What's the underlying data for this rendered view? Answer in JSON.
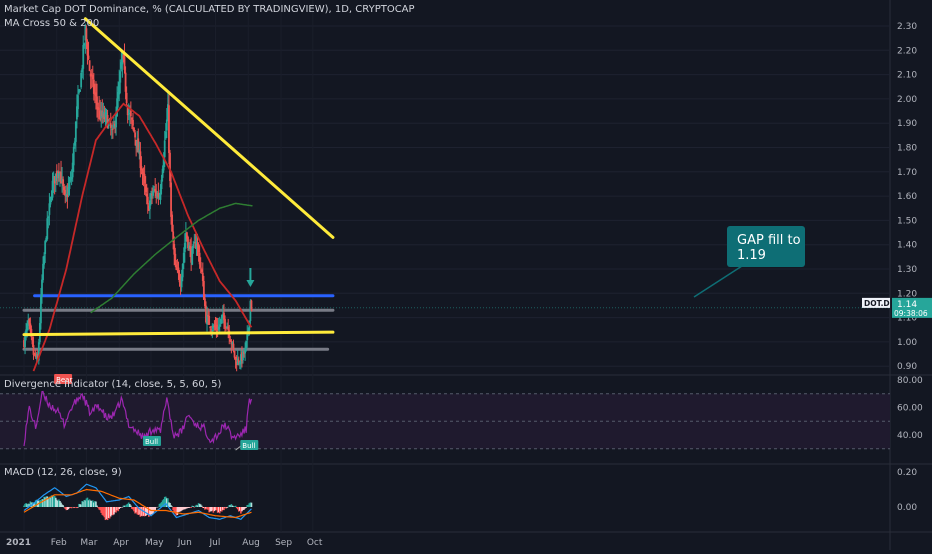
{
  "header": {
    "title": "Market Cap DOT Dominance, % (CALCULATED BY TRADINGVIEW), 1D, CRYPTOCAP",
    "indicator_ma": "MA Cross 50 & 200",
    "indicator_div": "Divergence Indicator (14, close, 5, 5, 60, 5)",
    "indicator_macd": "MACD (12, 26, close, 9)"
  },
  "colors": {
    "background": "#131722",
    "up": "#26a69a",
    "down": "#ef5350",
    "ma50": "#c62828",
    "ma200": "#2e7d32",
    "trendline": "#ffeb3b",
    "blue_line": "#2962ff",
    "grey_line": "#787b86",
    "rsi": "#9c27b0",
    "macd": "#2196f3",
    "signal": "#ff6d00",
    "callout": "#0e6e75"
  },
  "price_axis": {
    "ticks": [
      "2.30",
      "2.20",
      "2.10",
      "2.00",
      "1.90",
      "1.80",
      "1.70",
      "1.60",
      "1.50",
      "1.40",
      "1.30",
      "1.20",
      "1.10",
      "1.00",
      "0.90"
    ],
    "current_symbol": "DOT.D",
    "current_value": "1.14",
    "countdown": "09:38:06"
  },
  "div_axis": {
    "ticks": [
      "80.00",
      "60.00",
      "40.00"
    ]
  },
  "macd_axis": {
    "ticks": [
      "0.20",
      "0.00"
    ]
  },
  "time_axis": {
    "ticks": [
      "2021",
      "Feb",
      "Mar",
      "Apr",
      "May",
      "Jun",
      "Jul",
      "Aug",
      "Sep",
      "Oct"
    ]
  },
  "annotations": {
    "callout": "GAP fill to\n1.19",
    "bear": "Bear",
    "bull1": "Bull",
    "bull2": "Bull"
  },
  "chart_data": {
    "type": "candlestick",
    "title": "Market Cap DOT Dominance, % (CALCULATED BY TRADINGVIEW), 1D, CRYPTOCAP",
    "ylim": [
      0.86,
      2.34
    ],
    "price_anchors": [
      {
        "t": "2021-01-01",
        "v": 1.0
      },
      {
        "t": "2021-01-05",
        "v": 1.08
      },
      {
        "t": "2021-01-10",
        "v": 0.95
      },
      {
        "t": "2021-01-14",
        "v": 0.92
      },
      {
        "t": "2021-01-18",
        "v": 1.25
      },
      {
        "t": "2021-01-22",
        "v": 1.45
      },
      {
        "t": "2021-01-28",
        "v": 1.65
      },
      {
        "t": "2021-02-03",
        "v": 1.72
      },
      {
        "t": "2021-02-09",
        "v": 1.58
      },
      {
        "t": "2021-02-15",
        "v": 1.68
      },
      {
        "t": "2021-02-20",
        "v": 1.95
      },
      {
        "t": "2021-02-24",
        "v": 2.1
      },
      {
        "t": "2021-02-28",
        "v": 2.28
      },
      {
        "t": "2021-03-04",
        "v": 2.12
      },
      {
        "t": "2021-03-08",
        "v": 2.03
      },
      {
        "t": "2021-03-14",
        "v": 1.93
      },
      {
        "t": "2021-03-20",
        "v": 1.92
      },
      {
        "t": "2021-03-26",
        "v": 1.85
      },
      {
        "t": "2021-04-01",
        "v": 2.05
      },
      {
        "t": "2021-04-04",
        "v": 2.18
      },
      {
        "t": "2021-04-09",
        "v": 1.96
      },
      {
        "t": "2021-04-16",
        "v": 1.85
      },
      {
        "t": "2021-04-22",
        "v": 1.72
      },
      {
        "t": "2021-04-28",
        "v": 1.55
      },
      {
        "t": "2021-05-03",
        "v": 1.62
      },
      {
        "t": "2021-05-09",
        "v": 1.6
      },
      {
        "t": "2021-05-13",
        "v": 1.78
      },
      {
        "t": "2021-05-17",
        "v": 1.95
      },
      {
        "t": "2021-05-20",
        "v": 1.5
      },
      {
        "t": "2021-05-24",
        "v": 1.3
      },
      {
        "t": "2021-05-29",
        "v": 1.25
      },
      {
        "t": "2021-06-03",
        "v": 1.45
      },
      {
        "t": "2021-06-08",
        "v": 1.35
      },
      {
        "t": "2021-06-13",
        "v": 1.42
      },
      {
        "t": "2021-06-18",
        "v": 1.28
      },
      {
        "t": "2021-06-22",
        "v": 1.1
      },
      {
        "t": "2021-06-28",
        "v": 1.06
      },
      {
        "t": "2021-07-04",
        "v": 1.06
      },
      {
        "t": "2021-07-07",
        "v": 1.1
      },
      {
        "t": "2021-07-12",
        "v": 1.07
      },
      {
        "t": "2021-07-16",
        "v": 1.0
      },
      {
        "t": "2021-07-20",
        "v": 0.92
      },
      {
        "t": "2021-07-25",
        "v": 0.93
      },
      {
        "t": "2021-07-29",
        "v": 0.96
      },
      {
        "t": "2021-08-01",
        "v": 1.05
      },
      {
        "t": "2021-08-03",
        "v": 1.17
      },
      {
        "t": "2021-08-04",
        "v": 1.14
      }
    ],
    "ma50": [
      {
        "t": "2021-01-10",
        "v": 0.88
      },
      {
        "t": "2021-01-25",
        "v": 1.05
      },
      {
        "t": "2021-02-10",
        "v": 1.3
      },
      {
        "t": "2021-02-25",
        "v": 1.6
      },
      {
        "t": "2021-03-10",
        "v": 1.83
      },
      {
        "t": "2021-03-25",
        "v": 1.92
      },
      {
        "t": "2021-04-05",
        "v": 1.98
      },
      {
        "t": "2021-04-20",
        "v": 1.93
      },
      {
        "t": "2021-05-05",
        "v": 1.82
      },
      {
        "t": "2021-05-20",
        "v": 1.7
      },
      {
        "t": "2021-06-05",
        "v": 1.52
      },
      {
        "t": "2021-06-20",
        "v": 1.38
      },
      {
        "t": "2021-07-05",
        "v": 1.25
      },
      {
        "t": "2021-07-20",
        "v": 1.17
      },
      {
        "t": "2021-08-01",
        "v": 1.08
      },
      {
        "t": "2021-08-04",
        "v": 1.06
      }
    ],
    "ma200": [
      {
        "t": "2021-03-05",
        "v": 1.12
      },
      {
        "t": "2021-03-25",
        "v": 1.18
      },
      {
        "t": "2021-04-15",
        "v": 1.28
      },
      {
        "t": "2021-05-05",
        "v": 1.36
      },
      {
        "t": "2021-05-25",
        "v": 1.43
      },
      {
        "t": "2021-06-15",
        "v": 1.5
      },
      {
        "t": "2021-07-05",
        "v": 1.55
      },
      {
        "t": "2021-07-20",
        "v": 1.57
      },
      {
        "t": "2021-08-05",
        "v": 1.56
      }
    ],
    "trendlines": [
      {
        "kind": "descending resistance",
        "from": {
          "t": "2021-02-28",
          "v": 2.33
        },
        "to": {
          "t": "2021-10-20",
          "v": 1.43
        }
      },
      {
        "kind": "support",
        "from": {
          "t": "2021-01-01",
          "v": 1.03
        },
        "to": {
          "t": "2021-10-20",
          "v": 1.04
        }
      },
      {
        "kind": "gap level",
        "from": {
          "t": "2021-01-11",
          "v": 1.19
        },
        "to": {
          "t": "2021-10-20",
          "v": 1.19
        }
      },
      {
        "kind": "level",
        "from": {
          "t": "2021-01-01",
          "v": 1.13
        },
        "to": {
          "t": "2021-10-20",
          "v": 1.13
        }
      },
      {
        "kind": "level",
        "from": {
          "t": "2021-01-01",
          "v": 0.97
        },
        "to": {
          "t": "2021-10-15",
          "v": 0.97
        }
      }
    ],
    "div_ylim": [
      25,
      85
    ],
    "div_bands": [
      70,
      50,
      30
    ],
    "div_anchors": [
      {
        "t": "2021-01-01",
        "v": 35
      },
      {
        "t": "2021-01-06",
        "v": 60
      },
      {
        "t": "2021-01-12",
        "v": 45
      },
      {
        "t": "2021-01-18",
        "v": 70
      },
      {
        "t": "2021-01-25",
        "v": 62
      },
      {
        "t": "2021-02-01",
        "v": 58
      },
      {
        "t": "2021-02-08",
        "v": 48
      },
      {
        "t": "2021-02-15",
        "v": 60
      },
      {
        "t": "2021-02-25",
        "v": 70
      },
      {
        "t": "2021-03-05",
        "v": 55
      },
      {
        "t": "2021-03-12",
        "v": 62
      },
      {
        "t": "2021-03-20",
        "v": 52
      },
      {
        "t": "2021-03-28",
        "v": 55
      },
      {
        "t": "2021-04-03",
        "v": 66
      },
      {
        "t": "2021-04-10",
        "v": 48
      },
      {
        "t": "2021-04-18",
        "v": 42
      },
      {
        "t": "2021-04-25",
        "v": 38
      },
      {
        "t": "2021-05-03",
        "v": 45
      },
      {
        "t": "2021-05-10",
        "v": 42
      },
      {
        "t": "2021-05-16",
        "v": 68
      },
      {
        "t": "2021-05-22",
        "v": 40
      },
      {
        "t": "2021-05-30",
        "v": 42
      },
      {
        "t": "2021-06-05",
        "v": 55
      },
      {
        "t": "2021-06-12",
        "v": 48
      },
      {
        "t": "2021-06-20",
        "v": 45
      },
      {
        "t": "2021-06-27",
        "v": 36
      },
      {
        "t": "2021-07-05",
        "v": 42
      },
      {
        "t": "2021-07-10",
        "v": 48
      },
      {
        "t": "2021-07-17",
        "v": 38
      },
      {
        "t": "2021-07-24",
        "v": 40
      },
      {
        "t": "2021-07-30",
        "v": 44
      },
      {
        "t": "2021-08-02",
        "v": 68
      },
      {
        "t": "2021-08-04",
        "v": 64
      }
    ],
    "macd_ylim": [
      -0.12,
      0.26
    ],
    "macd_anchors": [
      {
        "t": "2021-01-01",
        "v": -0.02
      },
      {
        "t": "2021-01-10",
        "v": 0.02
      },
      {
        "t": "2021-01-20",
        "v": 0.07
      },
      {
        "t": "2021-01-30",
        "v": 0.11
      },
      {
        "t": "2021-02-10",
        "v": 0.06
      },
      {
        "t": "2021-02-20",
        "v": 0.08
      },
      {
        "t": "2021-03-01",
        "v": 0.13
      },
      {
        "t": "2021-03-10",
        "v": 0.11
      },
      {
        "t": "2021-03-20",
        "v": 0.03
      },
      {
        "t": "2021-04-01",
        "v": 0.04
      },
      {
        "t": "2021-04-10",
        "v": 0.06
      },
      {
        "t": "2021-04-20",
        "v": -0.01
      },
      {
        "t": "2021-05-01",
        "v": -0.05
      },
      {
        "t": "2021-05-15",
        "v": 0.02
      },
      {
        "t": "2021-05-25",
        "v": -0.06
      },
      {
        "t": "2021-06-05",
        "v": -0.04
      },
      {
        "t": "2021-06-15",
        "v": -0.02
      },
      {
        "t": "2021-06-25",
        "v": -0.06
      },
      {
        "t": "2021-07-05",
        "v": -0.07
      },
      {
        "t": "2021-07-15",
        "v": -0.05
      },
      {
        "t": "2021-07-25",
        "v": -0.07
      },
      {
        "t": "2021-08-04",
        "v": -0.01
      }
    ],
    "signal_anchors": [
      {
        "t": "2021-01-01",
        "v": -0.03
      },
      {
        "t": "2021-01-15",
        "v": 0.02
      },
      {
        "t": "2021-01-30",
        "v": 0.07
      },
      {
        "t": "2021-02-15",
        "v": 0.07
      },
      {
        "t": "2021-03-01",
        "v": 0.1
      },
      {
        "t": "2021-03-15",
        "v": 0.09
      },
      {
        "t": "2021-04-01",
        "v": 0.05
      },
      {
        "t": "2021-04-15",
        "v": 0.04
      },
      {
        "t": "2021-05-01",
        "v": -0.02
      },
      {
        "t": "2021-05-15",
        "v": -0.02
      },
      {
        "t": "2021-06-01",
        "v": -0.04
      },
      {
        "t": "2021-06-15",
        "v": -0.03
      },
      {
        "t": "2021-07-01",
        "v": -0.05
      },
      {
        "t": "2021-07-20",
        "v": -0.06
      },
      {
        "t": "2021-08-04",
        "v": -0.03
      }
    ]
  }
}
